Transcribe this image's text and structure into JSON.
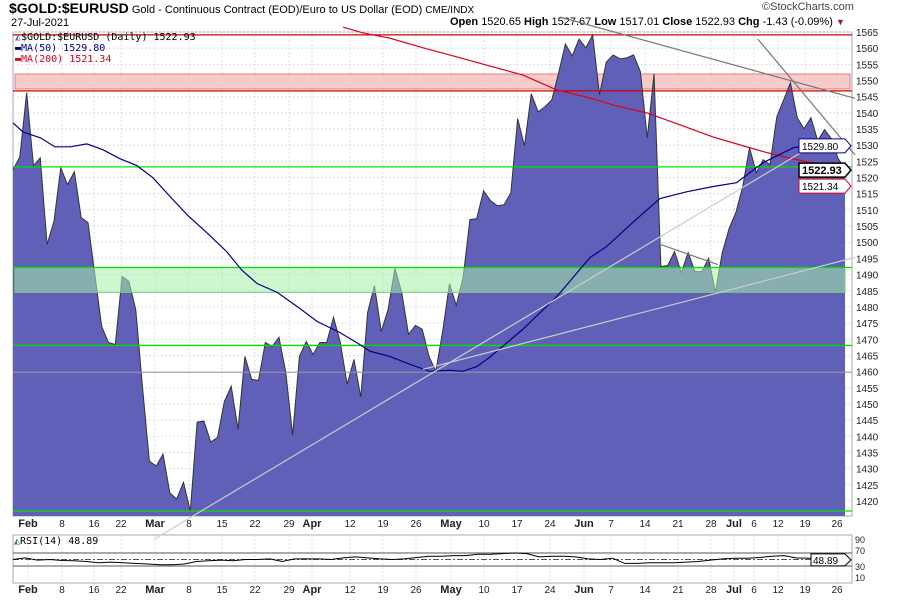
{
  "header": {
    "symbol": "$GOLD:$EURUSD",
    "description": "Gold - Continuous Contract (EOD)/Euro to US Dollar (EOD)",
    "exchange": "CME/INDX",
    "date": "27-Jul-2021",
    "copyright": "©StockCharts.com",
    "open_label": "Open",
    "open": "1520.65",
    "high_label": "High",
    "high": "1527.67",
    "low_label": "Low",
    "low": "1517.01",
    "close_label": "Close",
    "close": "1522.93",
    "chg_label": "Chg",
    "chg": "-1.43 (-0.09%)"
  },
  "legend": {
    "main": "$GOLD:$EURUSD (Daily) 1522.93",
    "ma50": "MA(50) 1529.80",
    "ma200": "MA(200) 1521.34"
  },
  "colors": {
    "area": "#6060b8",
    "ma50": "#00008b",
    "ma200": "#dd0022",
    "green": "#00e000",
    "red_line": "#cc0000",
    "pink_band": "#f5b8b8",
    "green_band": "#a8f0a8"
  },
  "chart_data": {
    "type": "area",
    "title": "$GOLD:$EURUSD (Daily)",
    "ylim": [
      1420,
      1565
    ],
    "y_ticks": [
      1565,
      1560,
      1555,
      1550,
      1545,
      1540,
      1535,
      1530,
      1525,
      1520,
      1515,
      1510,
      1505,
      1500,
      1495,
      1490,
      1485,
      1480,
      1475,
      1470,
      1465,
      1460,
      1455,
      1450,
      1445,
      1440,
      1435,
      1430,
      1425,
      1420
    ],
    "x_tick_labels": [
      "Feb",
      "8",
      "16",
      "22",
      "Mar",
      "8",
      "15",
      "22",
      "29",
      "Apr",
      "12",
      "19",
      "26",
      "May",
      "10",
      "17",
      "24",
      "Jun",
      "7",
      "14",
      "21",
      "28",
      "Jul",
      "6",
      "12",
      "19",
      "26"
    ],
    "x_tick_bold": [
      true,
      false,
      false,
      false,
      true,
      false,
      false,
      false,
      false,
      true,
      false,
      false,
      false,
      true,
      false,
      false,
      false,
      true,
      false,
      false,
      false,
      false,
      true,
      false,
      false,
      false,
      false
    ],
    "x_range_days": [
      0,
      125
    ],
    "close": [
      1522.4,
      1526.4,
      1546.2,
      1523.7,
      1526.1,
      1499.3,
      1506.4,
      1523.0,
      1517.8,
      1521.8,
      1507.6,
      1506.1,
      1490,
      1474.0,
      1469.0,
      1468.4,
      1489.4,
      1487.9,
      1479.2,
      1455,
      1432.3,
      1430.8,
      1434.5,
      1422.5,
      1420.6,
      1425.8,
      1416.9,
      1444.4,
      1444.7,
      1438.2,
      1439.7,
      1450.8,
      1455.5,
      1442.2,
      1464.7,
      1457.6,
      1457.3,
      1469.0,
      1467.8,
      1470.6,
      1459.8,
      1440.3,
      1464.7,
      1469.3,
      1465.3,
      1469.0,
      1469.0,
      1476.8,
      1469.0,
      1456.1,
      1463.8,
      1452.1,
      1478.3,
      1486.6,
      1472.4,
      1479.2,
      1491.9,
      1484.5,
      1471.5,
      1474.3,
      1473.1,
      1464.7,
      1460.1,
      1472.4,
      1487.2,
      1480.5,
      1489.1,
      1507.0,
      1507.3,
      1515.9,
      1512.9,
      1511.3,
      1511.6,
      1515.3,
      1538.2,
      1529.8,
      1545.9,
      1540.3,
      1541.9,
      1544.0,
      1552.3,
      1561.3,
      1557.6,
      1562.8,
      1560.1,
      1564.1,
      1545.6,
      1555.7,
      1557.9,
      1556.7,
      1557.0,
      1557.9,
      1552.7,
      1532.3,
      1552.0,
      1492.5,
      1492.8,
      1497.1,
      1490.6,
      1496.8,
      1490.9,
      1490.9,
      1495.0,
      1484.5,
      1496.8,
      1504.2,
      1509.2,
      1517.2,
      1529.2,
      1521.5,
      1525.5,
      1524.0,
      1538.8,
      1544.0,
      1549.3,
      1538.5,
      1535.1,
      1538.5,
      1531.4,
      1534.8,
      1532.0,
      1525.8,
      1522.93
    ],
    "ma50": [
      [
        0,
        1536.9
      ],
      [
        1.5,
        1534.1
      ],
      [
        4.1,
        1532.3
      ],
      [
        6.3,
        1529.5
      ],
      [
        8.6,
        1529.5
      ],
      [
        11.1,
        1530.4
      ],
      [
        13.5,
        1528.6
      ],
      [
        16.1,
        1525.8
      ],
      [
        18.6,
        1523.7
      ],
      [
        21,
        1520
      ],
      [
        23.6,
        1514.1
      ],
      [
        26.3,
        1508.2
      ],
      [
        29.1,
        1503
      ],
      [
        32.1,
        1497.1
      ],
      [
        34.4,
        1491.3
      ],
      [
        36.7,
        1487.2
      ],
      [
        39.7,
        1484.5
      ],
      [
        43.1,
        1479.5
      ],
      [
        45.7,
        1475.5
      ],
      [
        49.1,
        1472.1
      ],
      [
        52.1,
        1468.4
      ],
      [
        53.6,
        1466.3
      ],
      [
        56.6,
        1464.7
      ],
      [
        59.6,
        1462.3
      ],
      [
        62.6,
        1460.1
      ],
      [
        65.6,
        1460.4
      ],
      [
        67.6,
        1460.1
      ],
      [
        69.7,
        1461.6
      ],
      [
        71.6,
        1464.4
      ],
      [
        76.6,
        1473.1
      ],
      [
        81.7,
        1483.2
      ],
      [
        86.7,
        1495.3
      ],
      [
        89.2,
        1498.7
      ],
      [
        93.1,
        1506.1
      ],
      [
        97.2,
        1513.5
      ],
      [
        101.2,
        1515.6
      ],
      [
        105.1,
        1517.2
      ],
      [
        108.7,
        1518.4
      ],
      [
        112.7,
        1524.6
      ],
      [
        117.2,
        1529.2
      ],
      [
        121.2,
        1530.4
      ],
      [
        125,
        1529.8
      ]
    ],
    "ma200": [
      [
        49.6,
        1566.5
      ],
      [
        52.6,
        1564.7
      ],
      [
        56.6,
        1563.1
      ],
      [
        61.6,
        1560.1
      ],
      [
        66.7,
        1557.3
      ],
      [
        71.6,
        1554.5
      ],
      [
        76.6,
        1551.7
      ],
      [
        81.7,
        1547.1
      ],
      [
        86.7,
        1544.6
      ],
      [
        90.1,
        1542.5
      ],
      [
        95.2,
        1540
      ],
      [
        100.2,
        1536.3
      ],
      [
        105.1,
        1532.6
      ],
      [
        109.2,
        1530.1
      ],
      [
        113.3,
        1527.7
      ],
      [
        117.8,
        1525.5
      ],
      [
        122.3,
        1523.7
      ],
      [
        125,
        1521.34
      ]
    ],
    "levels": {
      "red_lines": [
        1564.1,
        1546.8
      ],
      "pink_band": [
        1547.4,
        1552.0
      ],
      "green_lines": [
        1523.3,
        1492.2,
        1468.1,
        1416.9
      ],
      "green_band": [
        1484.5,
        1492.2
      ],
      "gray_lines": [
        1459.8
      ]
    },
    "trendlines": [
      {
        "style": "dark",
        "from": [
          82.2,
          1569.6
        ],
        "to": [
          126.5,
          1544.5
        ]
      },
      {
        "style": "dark",
        "from": [
          111.9,
          1562.8
        ],
        "to": [
          126.5,
          1527.0
        ]
      },
      {
        "style": "light",
        "from": [
          21.3,
          1408.3
        ],
        "to": [
          120.9,
          1530.8
        ]
      },
      {
        "style": "light",
        "from": [
          61.6,
          1460.7
        ],
        "to": [
          126.5,
          1495.3
        ]
      },
      {
        "style": "dark",
        "from": [
          96.9,
          1499.6
        ],
        "to": [
          105.9,
          1493.1
        ]
      }
    ],
    "value_tags": {
      "ma50": "1529.80",
      "close": "1522.93",
      "ma200": "1521.34"
    },
    "rsi": {
      "label": "RSI(14) 48.89",
      "value_tag": "48.89",
      "y_ticks": [
        "90",
        "70",
        "30",
        "10"
      ],
      "levels": [
        70,
        50,
        30
      ],
      "values": [
        50,
        55,
        48,
        50,
        47,
        46,
        44,
        40,
        42,
        40,
        38,
        36,
        34,
        34,
        36,
        44,
        46,
        48,
        46,
        50,
        50,
        52,
        44,
        52,
        52,
        52,
        50,
        55,
        58,
        55,
        52,
        50,
        52,
        56,
        60,
        60,
        62,
        62,
        66,
        66,
        68,
        70,
        68,
        58,
        60,
        60,
        58,
        52,
        50,
        54,
        38,
        38,
        40,
        40,
        40,
        42,
        44,
        48,
        52,
        54,
        54,
        56,
        60,
        62,
        55,
        54,
        54,
        50,
        48.89
      ]
    }
  }
}
